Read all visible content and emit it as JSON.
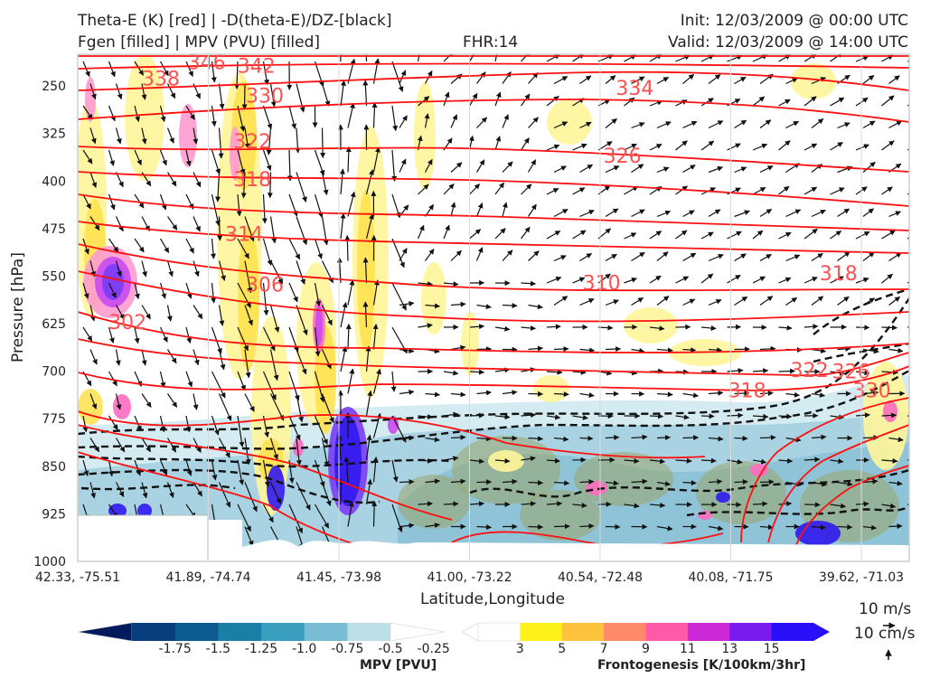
{
  "header": {
    "title_left_1": "Theta-E (K) [red] | -D(theta-E)/DZ-[black]",
    "title_left_2": "Fgen [filled] | MPV (PVU) [filled]",
    "title_center": "FHR:14",
    "title_right_1": "Init: 12/03/2009 @ 00:00 UTC",
    "title_right_2": "Valid: 12/03/2009 @ 14:00 UTC"
  },
  "chart_data": {
    "type": "cross-section",
    "xlabel": "Latitude,Longitude",
    "ylabel": "Pressure [hPa]",
    "ylim": [
      1000,
      200
    ],
    "yticks": [
      250,
      325,
      400,
      475,
      550,
      625,
      700,
      775,
      850,
      925,
      1000
    ],
    "xticks": [
      "42.33, -75.51",
      "41.89, -74.74",
      "41.45, -73.98",
      "41.00, -73.22",
      "40.54, -72.48",
      "40.08, -71.75",
      "39.62, -71.03"
    ],
    "theta_e_labels": [
      {
        "text": "338",
        "x": 0.1,
        "p": 238
      },
      {
        "text": "346",
        "x": 0.155,
        "p": 212
      },
      {
        "text": "342",
        "x": 0.215,
        "p": 218
      },
      {
        "text": "330",
        "x": 0.225,
        "p": 265
      },
      {
        "text": "334",
        "x": 0.67,
        "p": 253
      },
      {
        "text": "322",
        "x": 0.21,
        "p": 337
      },
      {
        "text": "326",
        "x": 0.655,
        "p": 360
      },
      {
        "text": "318",
        "x": 0.21,
        "p": 397
      },
      {
        "text": "314",
        "x": 0.2,
        "p": 483
      },
      {
        "text": "306",
        "x": 0.225,
        "p": 563
      },
      {
        "text": "310",
        "x": 0.63,
        "p": 560
      },
      {
        "text": "318",
        "x": 0.915,
        "p": 545
      },
      {
        "text": "302",
        "x": 0.06,
        "p": 622
      },
      {
        "text": "322",
        "x": 0.88,
        "p": 698
      },
      {
        "text": "326",
        "x": 0.93,
        "p": 700
      },
      {
        "text": "318",
        "x": 0.805,
        "p": 730
      },
      {
        "text": "330",
        "x": 0.955,
        "p": 730
      }
    ],
    "mpv_colorbar": {
      "label": "MPV [PVU]",
      "ticks": [
        "-1.75",
        "-1.5",
        "-1.25",
        "-1.0",
        "-0.75",
        "-0.5",
        "-0.25"
      ],
      "colors": [
        "#031a5c",
        "#083e7e",
        "#0b5a90",
        "#197fa6",
        "#3a9ebe",
        "#79bdd4",
        "#bcdfe8",
        "#ffffff"
      ]
    },
    "fgen_colorbar": {
      "label": "Frontogenesis [K/100km/3hr]",
      "ticks": [
        "3",
        "5",
        "7",
        "9",
        "11",
        "13",
        "15"
      ],
      "colors": [
        "#ffffff",
        "#fff21a",
        "#ffc23c",
        "#ff8a6a",
        "#ff5aa8",
        "#cc28d8",
        "#7a1cf0",
        "#2a10f8"
      ]
    },
    "vector_legend": {
      "horizontal": "10 m/s",
      "vertical": "10 cm/s"
    }
  }
}
